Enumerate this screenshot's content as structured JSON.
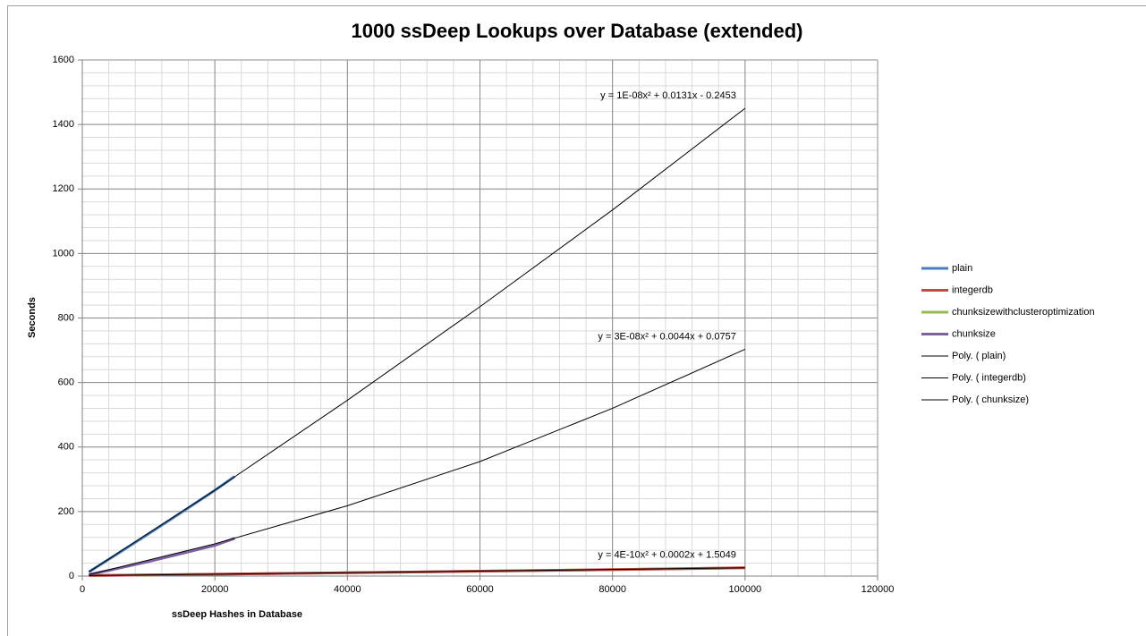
{
  "chart_data": {
    "type": "line",
    "title": "1000 ssDeep Lookups over Database (extended)",
    "x_label": "ssDeep Hashes in Database",
    "y_label": "Seconds",
    "xlim": [
      0,
      120000
    ],
    "ylim": [
      0,
      1600
    ],
    "xticks": [
      0,
      20000,
      40000,
      60000,
      80000,
      100000,
      120000
    ],
    "yticks": [
      0,
      200,
      400,
      600,
      800,
      1000,
      1200,
      1400,
      1600
    ],
    "grid": true,
    "minor_grid": {
      "x": 4000,
      "y": 40
    },
    "legend": "right",
    "series": [
      {
        "name": "plain",
        "color": "#4a7ebb",
        "x": [
          1000,
          5000,
          10000,
          15000,
          20000,
          23000
        ],
        "values": [
          13,
          65,
          131,
          198,
          266,
          309
        ]
      },
      {
        "name": "integerdb",
        "color": "#be4b48",
        "x": [
          1000,
          10000,
          25000,
          50000,
          75000,
          100000
        ],
        "values": [
          1.7,
          3.6,
          6.8,
          12.5,
          18.8,
          25.5
        ]
      },
      {
        "name": "chunksizewithclusteroptimization",
        "color": "#98b954",
        "x": [
          1000,
          10000,
          25000,
          50000,
          75000,
          100000
        ],
        "values": [
          1.7,
          3.6,
          6.8,
          12.5,
          18.8,
          25.5
        ]
      },
      {
        "name": "chunksize",
        "color": "#7d60a0",
        "x": [
          1000,
          5000,
          10000,
          15000,
          20000,
          23000
        ],
        "values": [
          4.5,
          22,
          45,
          70,
          95,
          117
        ]
      }
    ],
    "trendlines": [
      {
        "name": "Poly. ( plain)",
        "color": "#000000",
        "x": [
          1000,
          20000,
          40000,
          60000,
          80000,
          100000
        ],
        "values": [
          13,
          266,
          545,
          835,
          1135,
          1450
        ],
        "equation": "y = 1E-08x² + 0.0131x - 0.2453"
      },
      {
        "name": "Poly. ( integerdb)",
        "color": "#000000",
        "x": [
          1000,
          20000,
          40000,
          60000,
          80000,
          100000
        ],
        "values": [
          1.7,
          5.8,
          10.7,
          15.5,
          20.4,
          25.5
        ],
        "equation": "y = 4E-10x² + 0.0002x + 1.5049"
      },
      {
        "name": "Poly. ( chunksize)",
        "color": "#000000",
        "x": [
          1000,
          20000,
          40000,
          60000,
          80000,
          100000
        ],
        "values": [
          4.5,
          100,
          218,
          355,
          520,
          703
        ],
        "equation": "y = 3E-08x² + 0.0044x + 0.0757"
      }
    ]
  }
}
